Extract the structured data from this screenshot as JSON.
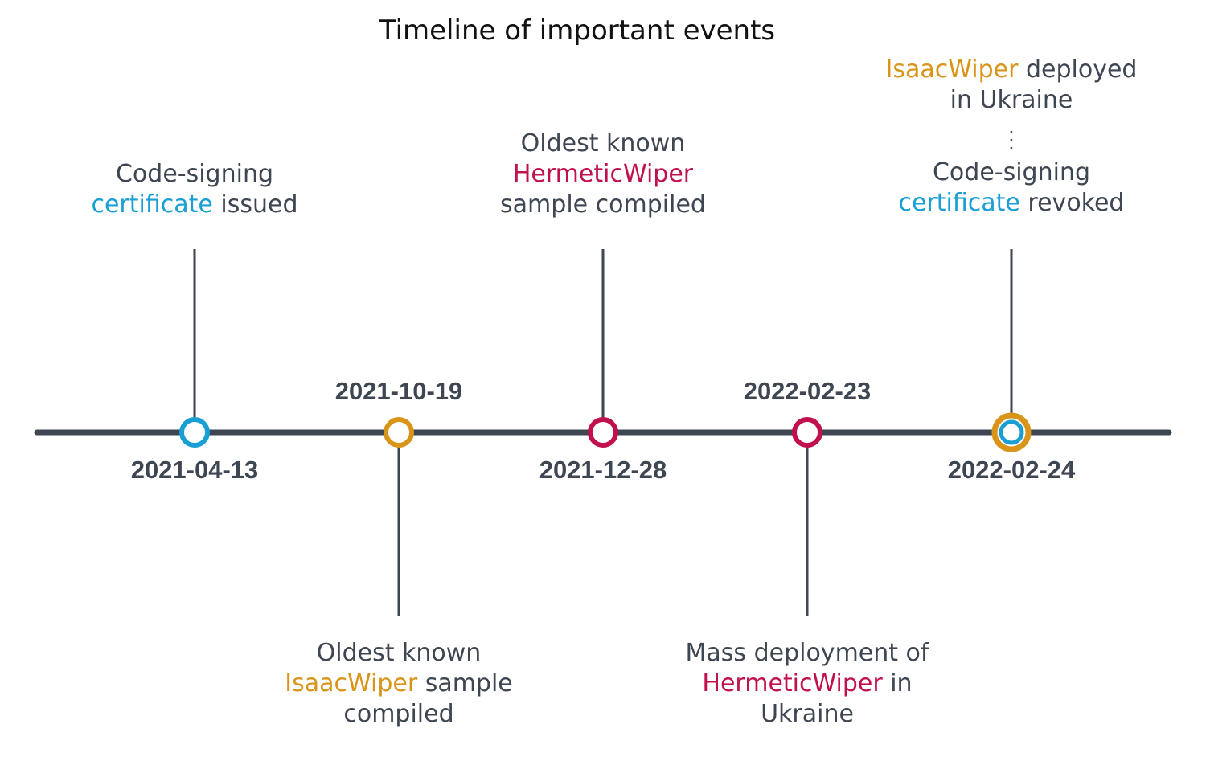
{
  "title": "Timeline of important events",
  "colors": {
    "axis": "#3d4651",
    "text": "#3d4651",
    "certificate": "#1a9fd4",
    "isaacwiper": "#d8951a",
    "hermeticwiper": "#c0114e"
  },
  "events": [
    {
      "date": "2021-04-13",
      "marker_colors": [
        "#1a9fd4"
      ],
      "label_lines": [
        [
          {
            "text": "Code-signing"
          }
        ],
        [
          {
            "text": "certificate",
            "color": "certificate"
          },
          {
            "text": " issued"
          }
        ]
      ]
    },
    {
      "date": "2021-10-19",
      "marker_colors": [
        "#d8951a"
      ],
      "label_lines": [
        [
          {
            "text": "Oldest known"
          }
        ],
        [
          {
            "text": "IsaacWiper",
            "color": "isaacwiper"
          },
          {
            "text": " sample"
          }
        ],
        [
          {
            "text": "compiled"
          }
        ]
      ]
    },
    {
      "date": "2021-12-28",
      "marker_colors": [
        "#c0114e"
      ],
      "label_lines": [
        [
          {
            "text": "Oldest known"
          }
        ],
        [
          {
            "text": "HermeticWiper",
            "color": "hermeticwiper"
          }
        ],
        [
          {
            "text": "sample compiled"
          }
        ]
      ]
    },
    {
      "date": "2022-02-23",
      "marker_colors": [
        "#c0114e"
      ],
      "label_lines": [
        [
          {
            "text": "Mass deployment of"
          }
        ],
        [
          {
            "text": "HermeticWiper",
            "color": "hermeticwiper"
          },
          {
            "text": " in"
          }
        ],
        [
          {
            "text": "Ukraine"
          }
        ]
      ]
    },
    {
      "date": "2022-02-24",
      "marker_colors": [
        "#d8951a",
        "#1a9fd4"
      ],
      "label_lines": [
        [
          {
            "text": "IsaacWiper",
            "color": "isaacwiper"
          },
          {
            "text": " deployed"
          }
        ],
        [
          {
            "text": "in Ukraine"
          }
        ],
        [
          {
            "text": "Code-signing"
          }
        ],
        [
          {
            "text": "certificate",
            "color": "certificate"
          },
          {
            "text": " revoked"
          }
        ]
      ]
    }
  ]
}
